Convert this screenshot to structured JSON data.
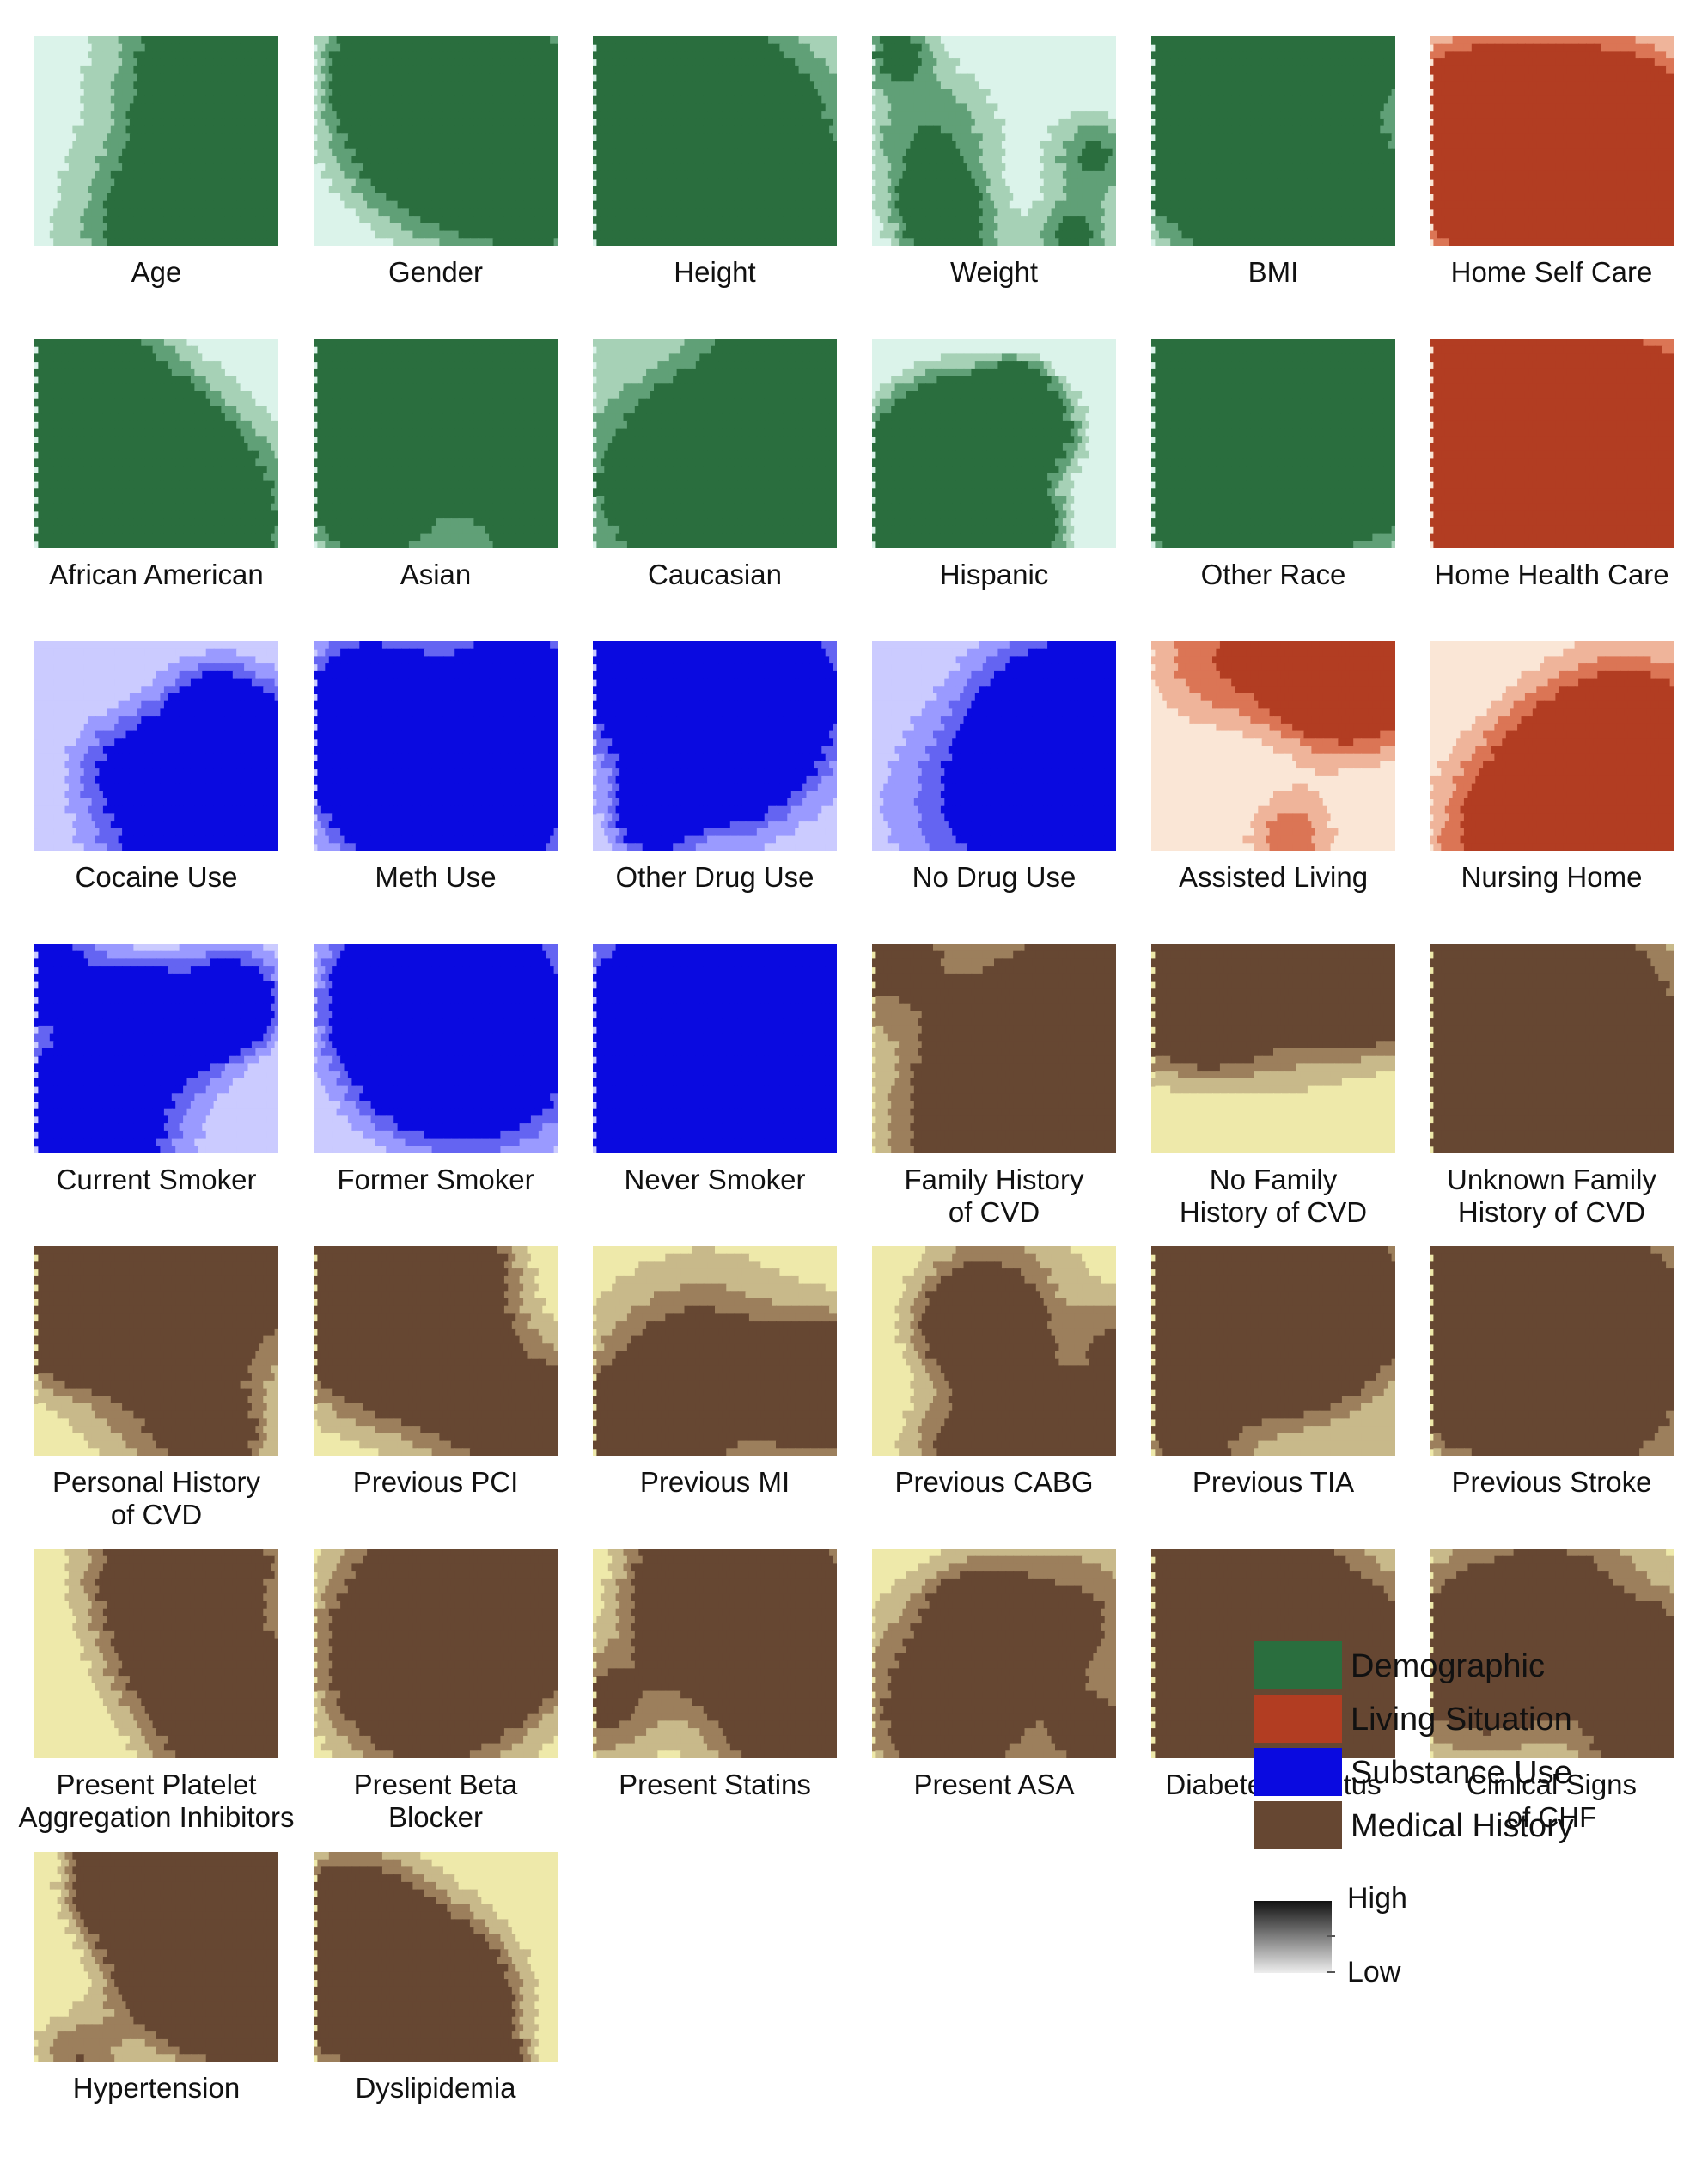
{
  "panels": [
    {
      "label": "Age",
      "category": "demographic",
      "seed": 1
    },
    {
      "label": "Gender",
      "category": "demographic",
      "seed": 2
    },
    {
      "label": "Height",
      "category": "demographic",
      "seed": 3
    },
    {
      "label": "Weight",
      "category": "demographic",
      "seed": 4
    },
    {
      "label": "BMI",
      "category": "demographic",
      "seed": 5
    },
    {
      "label": "Home Self Care",
      "category": "living",
      "seed": 6
    },
    {
      "label": "African American",
      "category": "demographic",
      "seed": 7
    },
    {
      "label": "Asian",
      "category": "demographic",
      "seed": 8
    },
    {
      "label": "Caucasian",
      "category": "demographic",
      "seed": 9
    },
    {
      "label": "Hispanic",
      "category": "demographic",
      "seed": 10
    },
    {
      "label": "Other Race",
      "category": "demographic",
      "seed": 11
    },
    {
      "label": "Home Health Care",
      "category": "living",
      "seed": 12
    },
    {
      "label": "Cocaine Use",
      "category": "substance",
      "seed": 13
    },
    {
      "label": "Meth Use",
      "category": "substance",
      "seed": 14
    },
    {
      "label": "Other Drug Use",
      "category": "substance",
      "seed": 15
    },
    {
      "label": "No Drug Use",
      "category": "substance",
      "seed": 16
    },
    {
      "label": "Assisted Living",
      "category": "living",
      "seed": 17
    },
    {
      "label": "Nursing Home",
      "category": "living",
      "seed": 18
    },
    {
      "label": "Current Smoker",
      "category": "substance",
      "seed": 19
    },
    {
      "label": "Former Smoker",
      "category": "substance",
      "seed": 20
    },
    {
      "label": "Never Smoker",
      "category": "substance",
      "seed": 21
    },
    {
      "label": "Family History\nof CVD",
      "category": "medical",
      "seed": 22
    },
    {
      "label": "No Family\nHistory of CVD",
      "category": "medical",
      "seed": 23
    },
    {
      "label": "Unknown Family\nHistory of CVD",
      "category": "medical",
      "seed": 24
    },
    {
      "label": "Personal History\nof CVD",
      "category": "medical",
      "seed": 25
    },
    {
      "label": "Previous PCI",
      "category": "medical",
      "seed": 26
    },
    {
      "label": "Previous MI",
      "category": "medical",
      "seed": 27
    },
    {
      "label": "Previous CABG",
      "category": "medical",
      "seed": 28
    },
    {
      "label": "Previous TIA",
      "category": "medical",
      "seed": 29
    },
    {
      "label": "Previous Stroke",
      "category": "medical",
      "seed": 30
    },
    {
      "label": "Present Platelet\nAggregation Inhibitors",
      "category": "medical",
      "seed": 31
    },
    {
      "label": "Present Beta\nBlocker",
      "category": "medical",
      "seed": 32
    },
    {
      "label": "Present Statins",
      "category": "medical",
      "seed": 33
    },
    {
      "label": "Present ASA",
      "category": "medical",
      "seed": 34
    },
    {
      "label": "Diabetes Mellitus",
      "category": "medical",
      "seed": 35
    },
    {
      "label": "Clinical Signs\nof CHF",
      "category": "medical",
      "seed": 36
    },
    {
      "label": "Hypertension",
      "category": "medical",
      "seed": 37
    },
    {
      "label": "Dyslipidemia",
      "category": "medical",
      "seed": 38
    }
  ],
  "palettes": {
    "demographic": [
      "#dbf3ea",
      "#a6d1b6",
      "#60a077",
      "#2a6e3e"
    ],
    "living": [
      "#fae6d6",
      "#efb49a",
      "#db7555",
      "#b23d22"
    ],
    "substance": [
      "#cbcbff",
      "#9a9aff",
      "#6464f2",
      "#0a0ae0"
    ],
    "medical": [
      "#eee9aa",
      "#c8b98a",
      "#9c7f5c",
      "#664732"
    ]
  },
  "legend": [
    {
      "label": "Demographic",
      "color": "#2a6e3e"
    },
    {
      "label": "Living Situation",
      "color": "#b23d22"
    },
    {
      "label": "Substance Use",
      "color": "#0a0ae0"
    },
    {
      "label": "Medical History",
      "color": "#664732"
    }
  ],
  "scale": {
    "high": "High",
    "low": "Low"
  }
}
